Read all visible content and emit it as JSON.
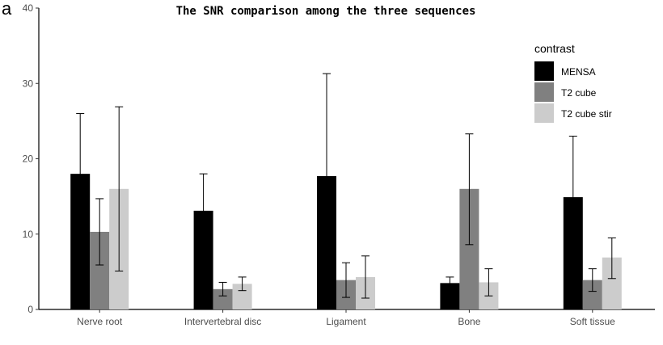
{
  "panel_label": "a",
  "chart_data": {
    "type": "bar",
    "title": "The SNR comparison among the three sequences",
    "xlabel": "",
    "ylabel": "",
    "ylim": [
      0,
      40
    ],
    "yticks": [
      0,
      10,
      20,
      30,
      40
    ],
    "grid": false,
    "categories": [
      "Nerve root",
      "Intervertebral disc",
      "Ligament",
      "Bone",
      "Soft tissue"
    ],
    "legend": {
      "title": "contrast",
      "placement": "top-right"
    },
    "series": [
      {
        "name": "MENSA",
        "color": "#000000",
        "values": [
          18.0,
          13.1,
          17.7,
          3.5,
          14.9
        ],
        "error_low": [
          10.0,
          8.3,
          4.1,
          2.7,
          6.8
        ],
        "error_high": [
          26.0,
          18.0,
          31.3,
          4.3,
          23.0
        ]
      },
      {
        "name": "T2 cube",
        "color": "#808080",
        "values": [
          10.3,
          2.7,
          3.9,
          16.0,
          3.9
        ],
        "error_low": [
          5.9,
          1.8,
          1.6,
          8.6,
          2.4
        ],
        "error_high": [
          14.7,
          3.6,
          6.2,
          23.3,
          5.4
        ]
      },
      {
        "name": "T2 cube stir",
        "color": "#cccccc",
        "values": [
          16.0,
          3.4,
          4.3,
          3.6,
          6.9
        ],
        "error_low": [
          5.1,
          2.5,
          1.5,
          1.8,
          4.1
        ],
        "error_high": [
          26.9,
          4.3,
          7.1,
          5.4,
          9.5
        ]
      }
    ]
  }
}
